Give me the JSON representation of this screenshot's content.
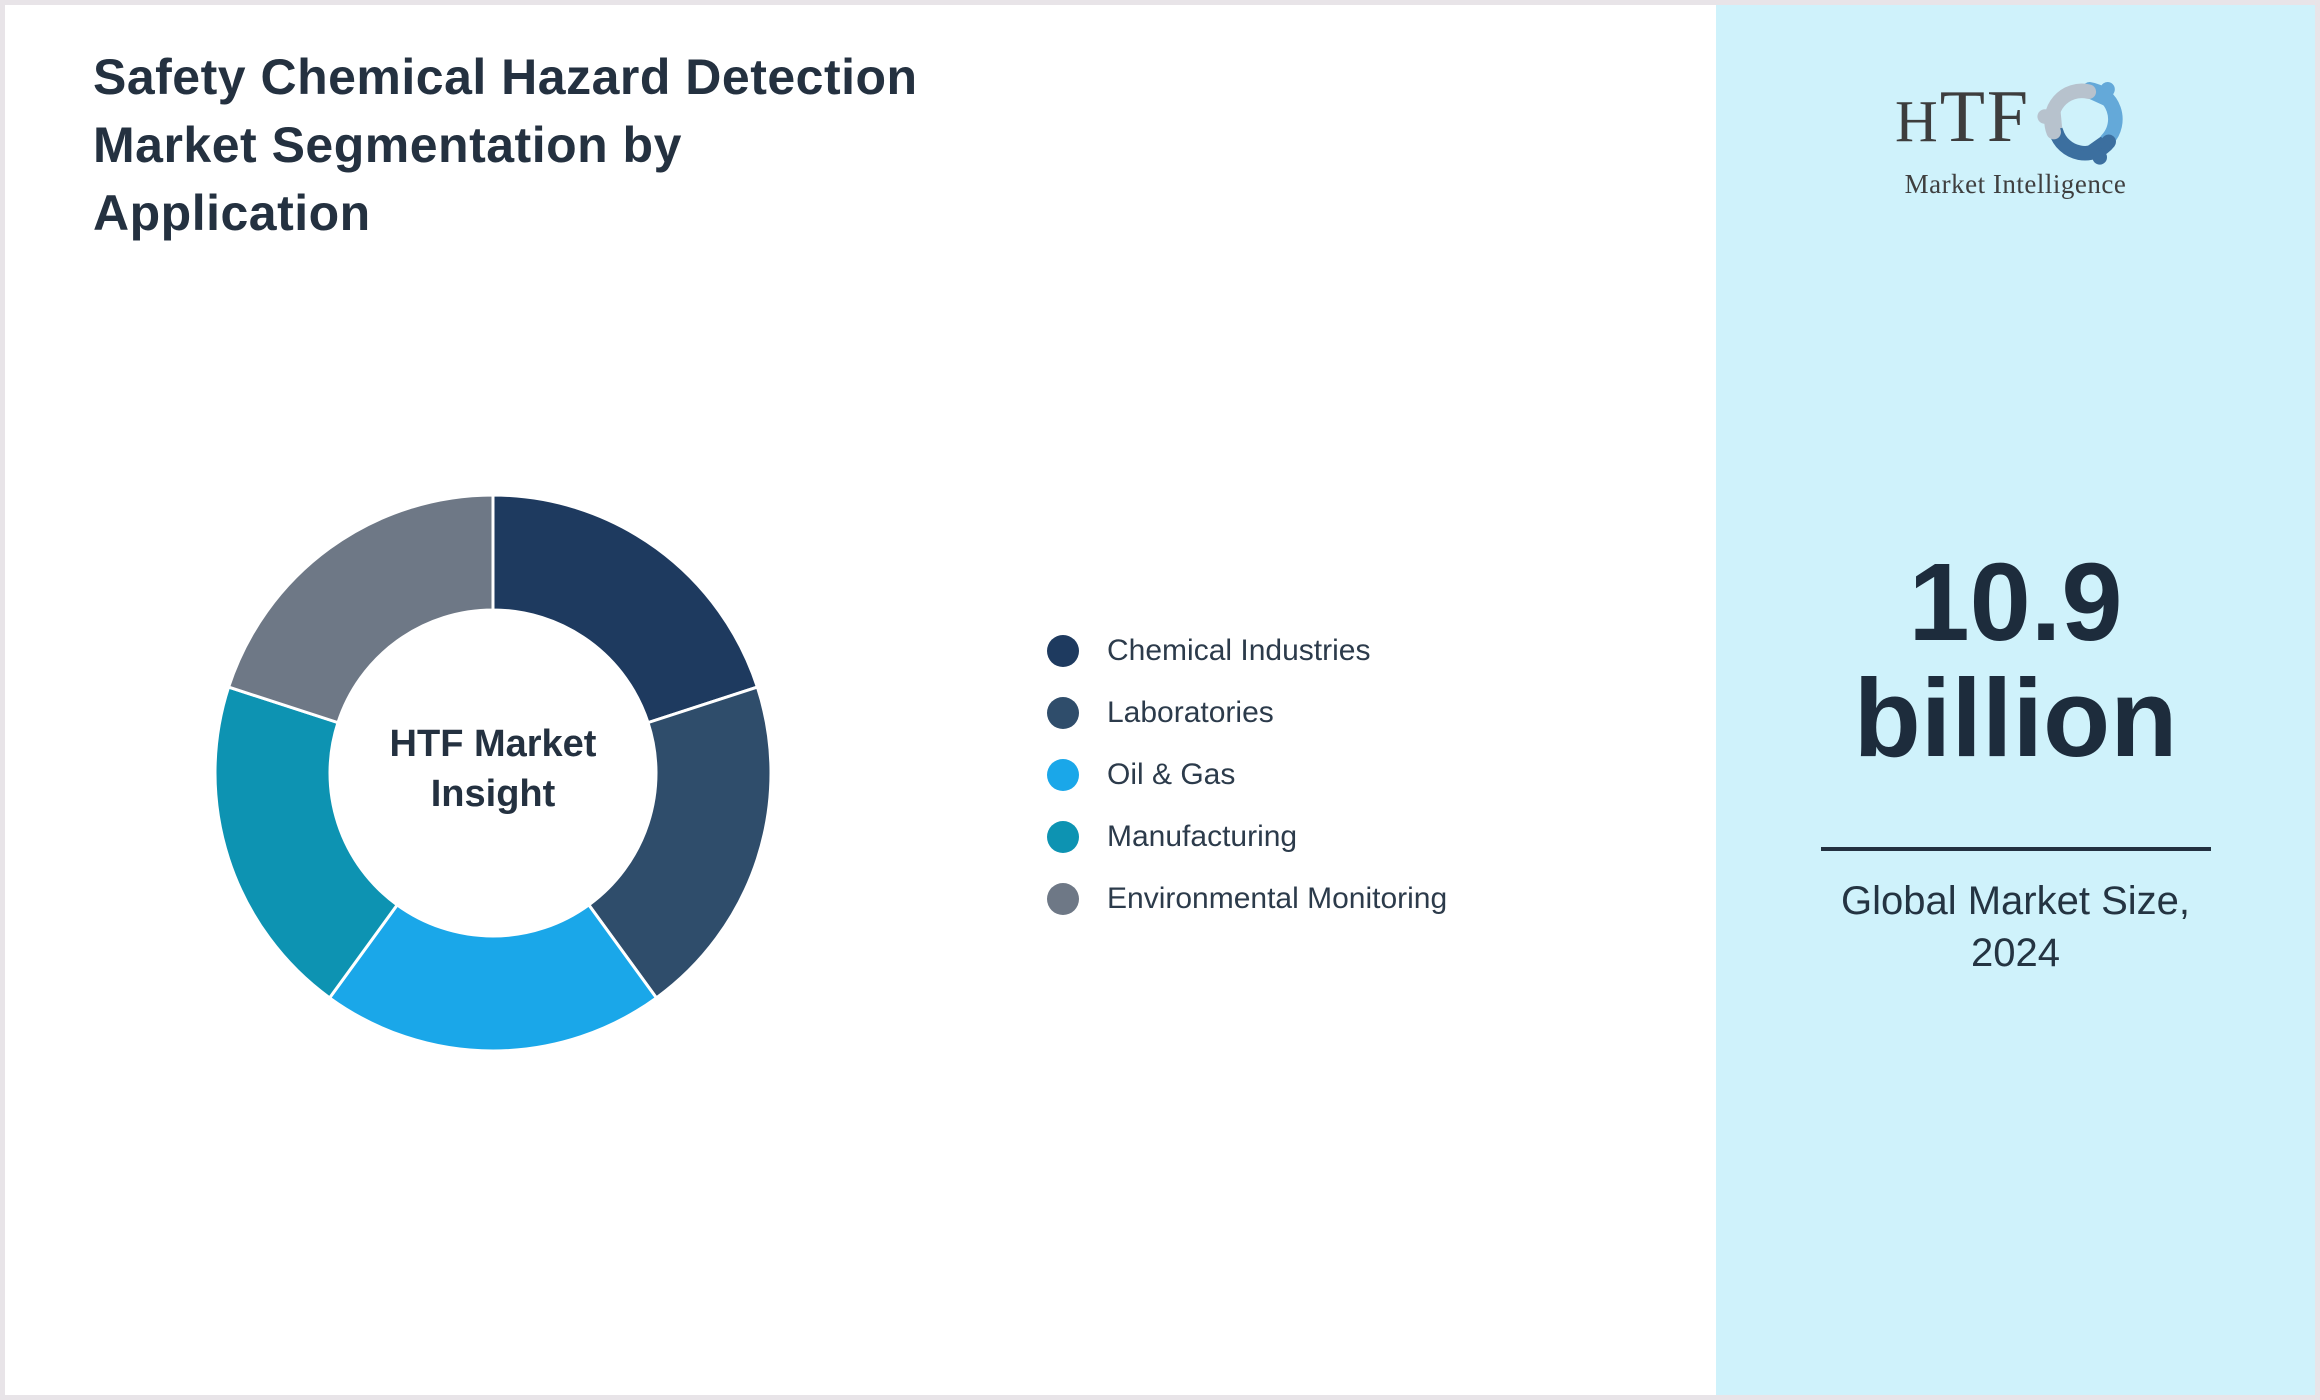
{
  "page": {
    "title": "Safety Chemical Hazard Detection Market Segmentation by Application",
    "title_lines": [
      "Safety Chemical Hazard Detection",
      "Market Segmentation by",
      "Application"
    ]
  },
  "chart_data": {
    "type": "pie",
    "subtype": "donut",
    "title": "Safety Chemical Hazard Detection Market Segmentation by Application",
    "center_label": "HTF Market Insight",
    "center_label_lines": [
      "HTF Market",
      "Insight"
    ],
    "categories": [
      "Chemical Industries",
      "Laboratories",
      "Oil & Gas",
      "Manufacturing",
      "Environmental Monitoring"
    ],
    "values": [
      20,
      20,
      20,
      20,
      20
    ],
    "colors": [
      "#1e3a5f",
      "#2f4d6b",
      "#1aa7e9",
      "#0d93b2",
      "#6e7886"
    ],
    "start_angle_deg": 0,
    "direction": "clockwise",
    "legend_position": "right",
    "data_labels_shown": false,
    "separator_color": "#ffffff"
  },
  "sidebar": {
    "background_color": "#cff2fb",
    "logo": {
      "brand": "HTF",
      "tagline": "Market Intelligence",
      "mark_colors": [
        "#64a9d9",
        "#3c6f9f",
        "#b7c2cd"
      ]
    },
    "metric_lines": [
      "10.9",
      "billion"
    ],
    "caption_lines": [
      "Global Market Size,",
      "2024"
    ]
  },
  "colors": {
    "title_text": "#243140",
    "legend_text": "#2c3b4b",
    "metric_text": "#1d2c3c",
    "divider": "#233140",
    "page_border": "#e8e4e8"
  }
}
